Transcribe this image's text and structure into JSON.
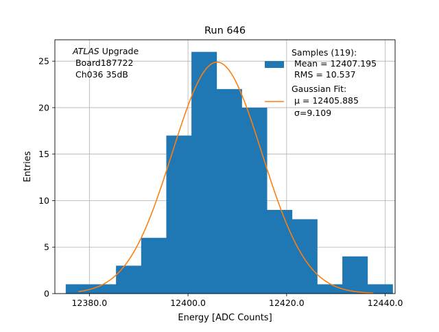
{
  "chart_data": {
    "type": "bar",
    "title": "Run 646",
    "xlabel": "Energy [ADC Counts]",
    "ylabel": "Entries",
    "xlim": [
      12373,
      12442
    ],
    "ylim": [
      0,
      27.3
    ],
    "grid": true,
    "x_ticks": [
      12380.0,
      12400.0,
      12420.0,
      12440.0
    ],
    "x_tick_labels": [
      "12380.0",
      "12400.0",
      "12420.0",
      "12440.0"
    ],
    "y_ticks": [
      0,
      5,
      10,
      15,
      20,
      25
    ],
    "y_tick_labels": [
      "0",
      "5",
      "10",
      "15",
      "20",
      "25"
    ],
    "bin_edges": [
      12375.2,
      12380.3,
      12385.4,
      12390.5,
      12395.6,
      12400.7,
      12405.8,
      12410.9,
      12416.0,
      12421.1,
      12426.2,
      12431.3,
      12436.4,
      12441.5
    ],
    "bin_counts": [
      1,
      1,
      3,
      6,
      17,
      26,
      22,
      20,
      9,
      8,
      1,
      4,
      1
    ],
    "series": [
      {
        "name": "Samples (119):",
        "type": "histogram",
        "color": "#1f77b4"
      },
      {
        "name": "Gaussian Fit:",
        "type": "line",
        "color": "#ff7f0e",
        "mu": 12405.885,
        "sigma": 9.109,
        "amplitude": 24.9,
        "x_range": [
          12377.8,
          12437.6
        ]
      }
    ],
    "annotation": {
      "line1_italic": "ATLAS",
      "line1_rest": " Upgrade",
      "line2": " Board187722",
      "line3": " Ch036 35dB"
    },
    "legend": {
      "placement": "top-right",
      "hist_label_1": "Samples (119):",
      "hist_label_2": " Mean = 12407.195",
      "hist_label_3": " RMS = 10.537",
      "fit_label_1": "Gaussian Fit:",
      "fit_label_2": " μ = 12405.885",
      "fit_label_3": " σ=9.109"
    }
  }
}
